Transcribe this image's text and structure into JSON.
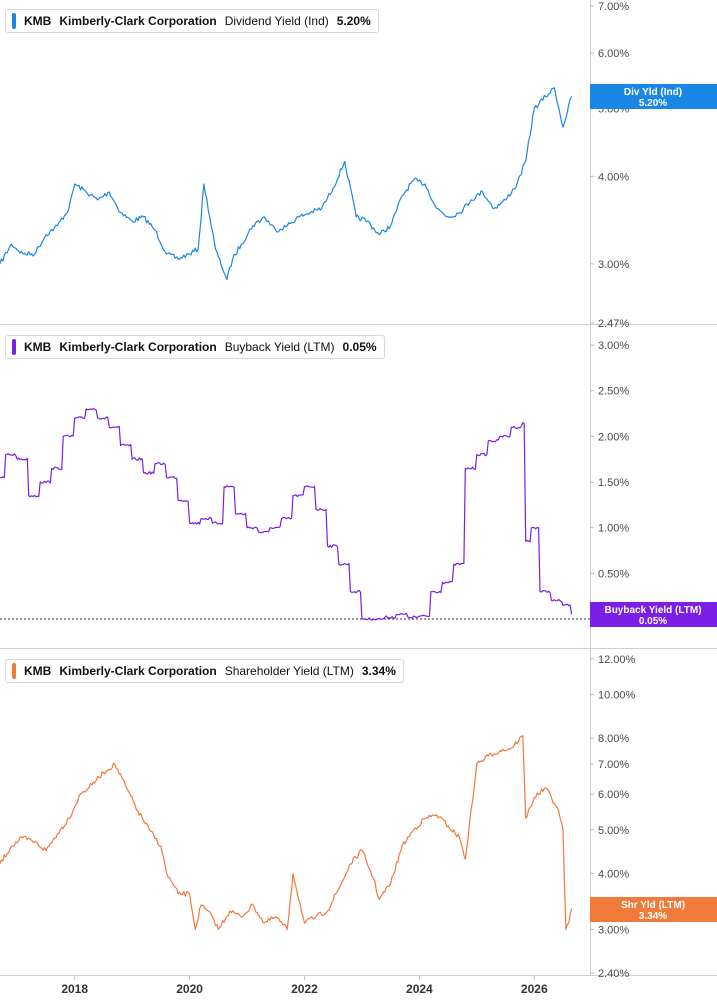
{
  "panels": [
    {
      "ticker": "KMB",
      "company": "Kimberly-Clark Corporation",
      "metric": "Dividend Yield (Ind)",
      "value": "5.20%",
      "color": "#1a87e6",
      "badge_line1": "Div Yld (Ind)",
      "badge_line2": "5.20%"
    },
    {
      "ticker": "KMB",
      "company": "Kimberly-Clark Corporation",
      "metric": "Buyback Yield (LTM)",
      "value": "0.05%",
      "color": "#7b1fe6",
      "badge_line1": "Buyback Yield (LTM)",
      "badge_line2": "0.05%"
    },
    {
      "ticker": "KMB",
      "company": "Kimberly-Clark Corporation",
      "metric": "Shareholder Yield (LTM)",
      "value": "3.34%",
      "color": "#f07a3a",
      "badge_line1": "Shr Yld (LTM)",
      "badge_line2": "3.34%"
    }
  ],
  "x_axis_labels": [
    "2018",
    "2020",
    "2022",
    "2024",
    "2026"
  ],
  "chart_data": [
    {
      "type": "line",
      "series": [
        {
          "name": "Dividend Yield (Ind)",
          "color": "#1a87e6",
          "x": [
            2016.7,
            2016.9,
            2017.1,
            2017.3,
            2017.5,
            2017.7,
            2017.9,
            2018.0,
            2018.2,
            2018.4,
            2018.6,
            2018.8,
            2019.0,
            2019.2,
            2019.4,
            2019.6,
            2019.8,
            2020.0,
            2020.15,
            2020.25,
            2020.45,
            2020.65,
            2020.75,
            2020.9,
            2021.1,
            2021.3,
            2021.5,
            2021.7,
            2021.9,
            2022.1,
            2022.3,
            2022.5,
            2022.7,
            2022.9,
            2023.1,
            2023.3,
            2023.5,
            2023.7,
            2023.9,
            2024.1,
            2024.3,
            2024.5,
            2024.7,
            2024.9,
            2025.1,
            2025.3,
            2025.5,
            2025.7,
            2025.85,
            2026.0,
            2026.2,
            2026.35,
            2026.5,
            2026.65
          ],
          "y": [
            3.0,
            3.2,
            3.1,
            3.1,
            3.3,
            3.4,
            3.6,
            3.9,
            3.8,
            3.7,
            3.8,
            3.55,
            3.45,
            3.5,
            3.35,
            3.1,
            3.05,
            3.1,
            3.15,
            3.9,
            3.15,
            2.85,
            3.05,
            3.2,
            3.4,
            3.5,
            3.35,
            3.4,
            3.5,
            3.55,
            3.6,
            3.85,
            4.2,
            3.5,
            3.45,
            3.3,
            3.4,
            3.75,
            3.95,
            3.9,
            3.6,
            3.5,
            3.55,
            3.7,
            3.8,
            3.6,
            3.7,
            3.9,
            4.2,
            5.0,
            5.2,
            5.35,
            4.7,
            5.2
          ]
        }
      ],
      "ylim": [
        2.47,
        7.0
      ],
      "log_scale": true,
      "yticks": [
        "7.00%",
        "6.00%",
        "5.00%",
        "4.00%",
        "3.00%",
        "2.47%"
      ],
      "ytick_values": [
        7.0,
        6.0,
        5.0,
        4.0,
        3.0,
        2.47
      ],
      "xlim": [
        2016.7,
        2026.97
      ],
      "grid": false
    },
    {
      "type": "line",
      "series": [
        {
          "name": "Buyback Yield (LTM)",
          "color": "#7b1fe6",
          "x": [
            2016.7,
            2016.8,
            2017.0,
            2017.2,
            2017.4,
            2017.6,
            2017.8,
            2018.0,
            2018.2,
            2018.4,
            2018.6,
            2018.8,
            2019.0,
            2019.2,
            2019.4,
            2019.6,
            2019.8,
            2020.0,
            2020.2,
            2020.4,
            2020.6,
            2020.8,
            2021.0,
            2021.2,
            2021.4,
            2021.6,
            2021.8,
            2022.0,
            2022.2,
            2022.4,
            2022.6,
            2022.8,
            2023.0,
            2023.2,
            2023.4,
            2023.6,
            2023.8,
            2024.0,
            2024.2,
            2024.4,
            2024.6,
            2024.8,
            2025.0,
            2025.2,
            2025.4,
            2025.6,
            2025.8,
            2025.85,
            2025.95,
            2026.1,
            2026.3,
            2026.5,
            2026.65
          ],
          "y": [
            1.55,
            1.8,
            1.75,
            1.35,
            1.5,
            1.65,
            2.0,
            2.2,
            2.3,
            2.2,
            2.1,
            1.9,
            1.75,
            1.6,
            1.7,
            1.55,
            1.3,
            1.05,
            1.1,
            1.05,
            1.45,
            1.15,
            1.0,
            0.95,
            1.0,
            1.1,
            1.35,
            1.45,
            1.2,
            0.8,
            0.6,
            0.3,
            0.0,
            0.0,
            0.02,
            0.05,
            0.02,
            0.03,
            0.3,
            0.4,
            0.6,
            1.65,
            1.8,
            1.95,
            2.0,
            2.1,
            2.15,
            0.85,
            1.0,
            0.3,
            0.2,
            0.15,
            0.05
          ]
        }
      ],
      "ylim": [
        0.0,
        3.0
      ],
      "yticks": [
        "3.00%",
        "2.50%",
        "2.00%",
        "1.50%",
        "1.00%",
        "0.50%"
      ],
      "ytick_values": [
        3.0,
        2.5,
        2.0,
        1.5,
        1.0,
        0.5
      ],
      "reference_line": 0.0,
      "xlim": [
        2016.7,
        2026.97
      ],
      "grid": false
    },
    {
      "type": "line",
      "series": [
        {
          "name": "Shareholder Yield (LTM)",
          "color": "#f07a3a",
          "x": [
            2016.7,
            2016.9,
            2017.1,
            2017.3,
            2017.5,
            2017.7,
            2017.9,
            2018.1,
            2018.3,
            2018.5,
            2018.7,
            2018.9,
            2019.1,
            2019.3,
            2019.5,
            2019.6,
            2019.8,
            2020.0,
            2020.1,
            2020.2,
            2020.4,
            2020.5,
            2020.7,
            2020.9,
            2021.1,
            2021.3,
            2021.5,
            2021.7,
            2021.8,
            2022.0,
            2022.2,
            2022.4,
            2022.6,
            2022.8,
            2023.0,
            2023.2,
            2023.3,
            2023.5,
            2023.7,
            2023.9,
            2024.1,
            2024.3,
            2024.5,
            2024.7,
            2024.8,
            2025.0,
            2025.2,
            2025.4,
            2025.6,
            2025.8,
            2025.85,
            2026.0,
            2026.2,
            2026.4,
            2026.5,
            2026.55,
            2026.6,
            2026.65
          ],
          "y": [
            4.2,
            4.6,
            4.8,
            4.7,
            4.5,
            4.9,
            5.3,
            6.0,
            6.3,
            6.7,
            7.0,
            6.2,
            5.5,
            5.0,
            4.6,
            4.0,
            3.6,
            3.6,
            3.0,
            3.4,
            3.2,
            3.0,
            3.3,
            3.2,
            3.4,
            3.1,
            3.2,
            3.0,
            4.0,
            3.1,
            3.2,
            3.3,
            3.7,
            4.2,
            4.5,
            3.9,
            3.5,
            3.8,
            4.6,
            5.0,
            5.3,
            5.4,
            5.1,
            4.8,
            4.3,
            7.0,
            7.3,
            7.5,
            7.6,
            8.1,
            5.3,
            5.9,
            6.2,
            5.6,
            5.0,
            3.0,
            3.1,
            3.34
          ]
        }
      ],
      "ylim": [
        2.4,
        12.0
      ],
      "log_scale": true,
      "yticks": [
        "12.00%",
        "10.00%",
        "8.00%",
        "7.00%",
        "6.00%",
        "5.00%",
        "4.00%",
        "3.00%",
        "2.40%"
      ],
      "ytick_values": [
        12.0,
        10.0,
        8.0,
        7.0,
        6.0,
        5.0,
        4.0,
        3.0,
        2.4
      ],
      "xlim": [
        2016.7,
        2026.97
      ],
      "grid": false
    }
  ]
}
